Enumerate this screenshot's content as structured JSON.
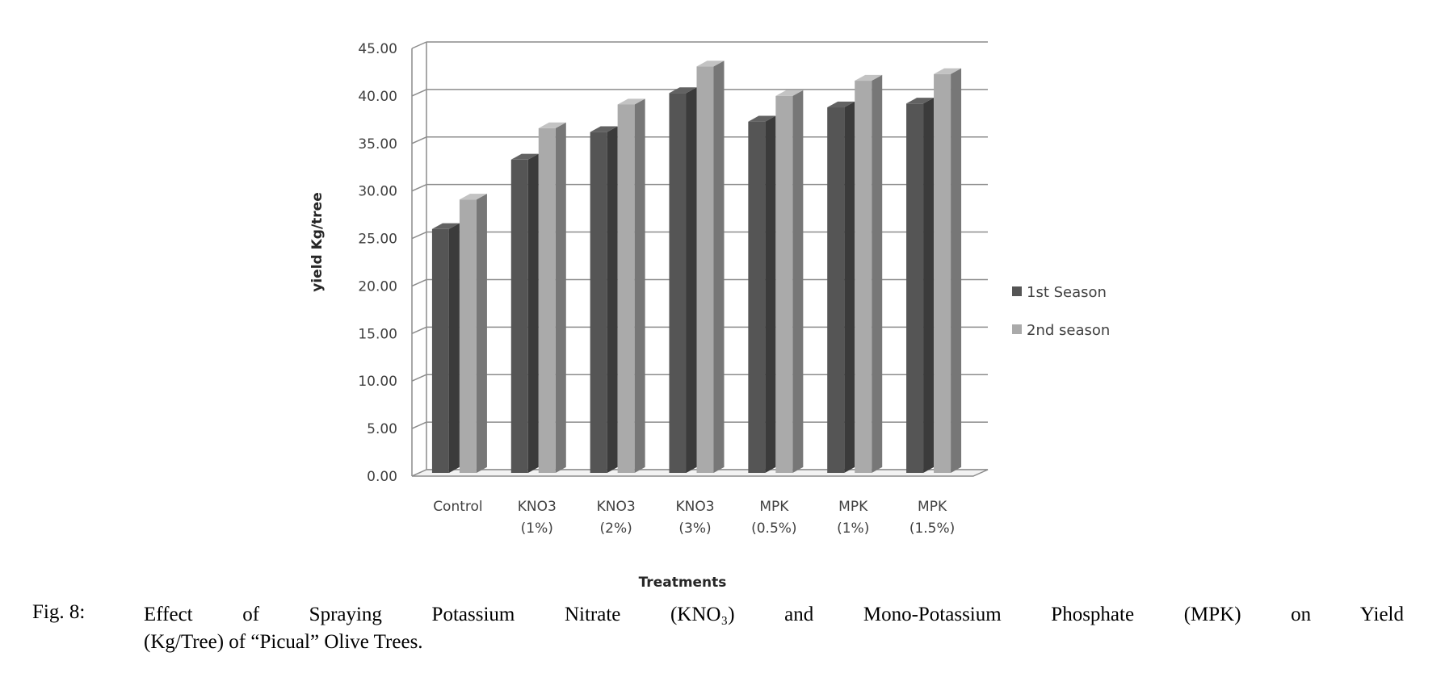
{
  "chart_data": {
    "type": "bar",
    "categories": [
      [
        "Control"
      ],
      [
        "KNO3",
        "(1%)"
      ],
      [
        "KNO3",
        "(2%)"
      ],
      [
        "KNO3",
        "(3%)"
      ],
      [
        "MPK",
        "(0.5%)"
      ],
      [
        "MPK",
        "(1%)"
      ],
      [
        "MPK",
        "(1.5%)"
      ]
    ],
    "series": [
      {
        "name": "1st Season",
        "color": "#555555",
        "values": [
          26.0,
          33.3,
          36.2,
          40.3,
          37.3,
          38.8,
          39.2
        ]
      },
      {
        "name": "2nd season",
        "color": "#aaaaaa",
        "values": [
          29.1,
          36.6,
          39.1,
          43.1,
          40.0,
          41.6,
          42.3
        ]
      }
    ],
    "xlabel": "Treatments",
    "ylabel": "yield Kg/tree",
    "ylim": [
      0,
      45
    ],
    "ytick_step": 5,
    "ytick_labels": [
      "0.00",
      "5.00",
      "10.00",
      "15.00",
      "20.00",
      "25.00",
      "30.00",
      "35.00",
      "40.00",
      "45.00"
    ],
    "grid": true,
    "legend_position": "right"
  },
  "caption": {
    "label": "Fig. 8:",
    "line1": "Effect of Spraying Potassium Nitrate (KNO₃) and Mono-Potassium Phosphate (MPK) on Yield",
    "line2": "(Kg/Tree) of “Picual” Olive Trees."
  }
}
